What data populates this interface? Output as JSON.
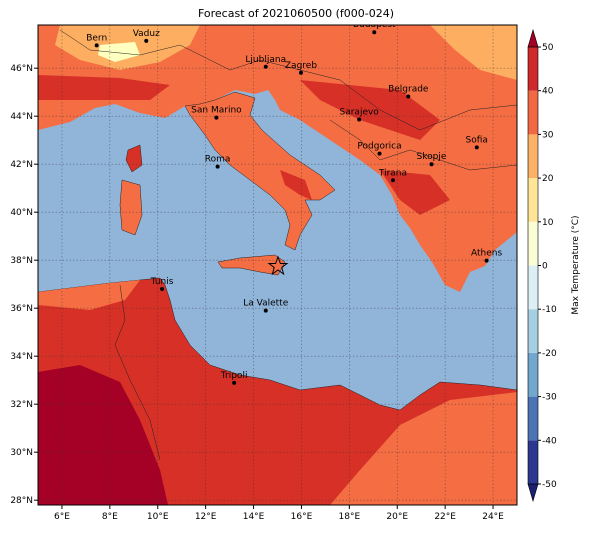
{
  "title": "Forecast of 2021060500 (f000-024)",
  "map": {
    "lon_range": [
      5,
      25
    ],
    "lat_range": [
      27.8,
      47.8
    ],
    "lon_ticks": [
      {
        "value": 6,
        "label": "6°E"
      },
      {
        "value": 8,
        "label": "8°E"
      },
      {
        "value": 10,
        "label": "10°E"
      },
      {
        "value": 12,
        "label": "12°E"
      },
      {
        "value": 14,
        "label": "14°E"
      },
      {
        "value": 16,
        "label": "16°E"
      },
      {
        "value": 18,
        "label": "18°E"
      },
      {
        "value": 20,
        "label": "20°E"
      },
      {
        "value": 22,
        "label": "22°E"
      },
      {
        "value": 24,
        "label": "24°E"
      }
    ],
    "lat_ticks": [
      {
        "value": 28,
        "label": "28°N"
      },
      {
        "value": 30,
        "label": "30°N"
      },
      {
        "value": 32,
        "label": "32°N"
      },
      {
        "value": 34,
        "label": "34°N"
      },
      {
        "value": 36,
        "label": "36°N"
      },
      {
        "value": 38,
        "label": "38°N"
      },
      {
        "value": 40,
        "label": "40°N"
      },
      {
        "value": 42,
        "label": "42°N"
      },
      {
        "value": 44,
        "label": "44°N"
      },
      {
        "value": 46,
        "label": "46°N"
      }
    ],
    "cities": [
      {
        "name": "Bern",
        "lon": 7.45,
        "lat": 46.95
      },
      {
        "name": "Vaduz",
        "lon": 9.52,
        "lat": 47.14
      },
      {
        "name": "Budapest",
        "lon": 19.04,
        "lat": 47.5
      },
      {
        "name": "Ljubljana",
        "lon": 14.51,
        "lat": 46.06
      },
      {
        "name": "Zagreb",
        "lon": 15.98,
        "lat": 45.81
      },
      {
        "name": "Belgrade",
        "lon": 20.46,
        "lat": 44.82
      },
      {
        "name": "San Marino",
        "lon": 12.45,
        "lat": 43.94
      },
      {
        "name": "Sarajevo",
        "lon": 18.41,
        "lat": 43.86
      },
      {
        "name": "Sofia",
        "lon": 23.32,
        "lat": 42.7
      },
      {
        "name": "Podgorica",
        "lon": 19.26,
        "lat": 42.44
      },
      {
        "name": "Skopje",
        "lon": 21.43,
        "lat": 42.0
      },
      {
        "name": "Roma",
        "lon": 12.5,
        "lat": 41.9
      },
      {
        "name": "Tirana",
        "lon": 19.82,
        "lat": 41.33
      },
      {
        "name": "Athens",
        "lon": 23.73,
        "lat": 37.98
      },
      {
        "name": "Tunis",
        "lon": 10.18,
        "lat": 36.8
      },
      {
        "name": "La Valette",
        "lon": 14.51,
        "lat": 35.9
      },
      {
        "name": "Tripoli",
        "lon": 13.19,
        "lat": 32.89
      }
    ]
  },
  "colorbar": {
    "label": "Max Temperature (°C)",
    "ticks": [
      -50,
      -40,
      -30,
      -20,
      -10,
      0,
      10,
      20,
      30,
      40,
      50
    ],
    "colors": [
      "#2c3790",
      "#4a74b4",
      "#74a7cf",
      "#a6cfe4",
      "#dbeff5",
      "#fbfdd4",
      "#fee597",
      "#fdb067",
      "#f06844",
      "#ce2a2c"
    ],
    "under_color": "#1d1f73",
    "over_color": "#a50026"
  }
}
